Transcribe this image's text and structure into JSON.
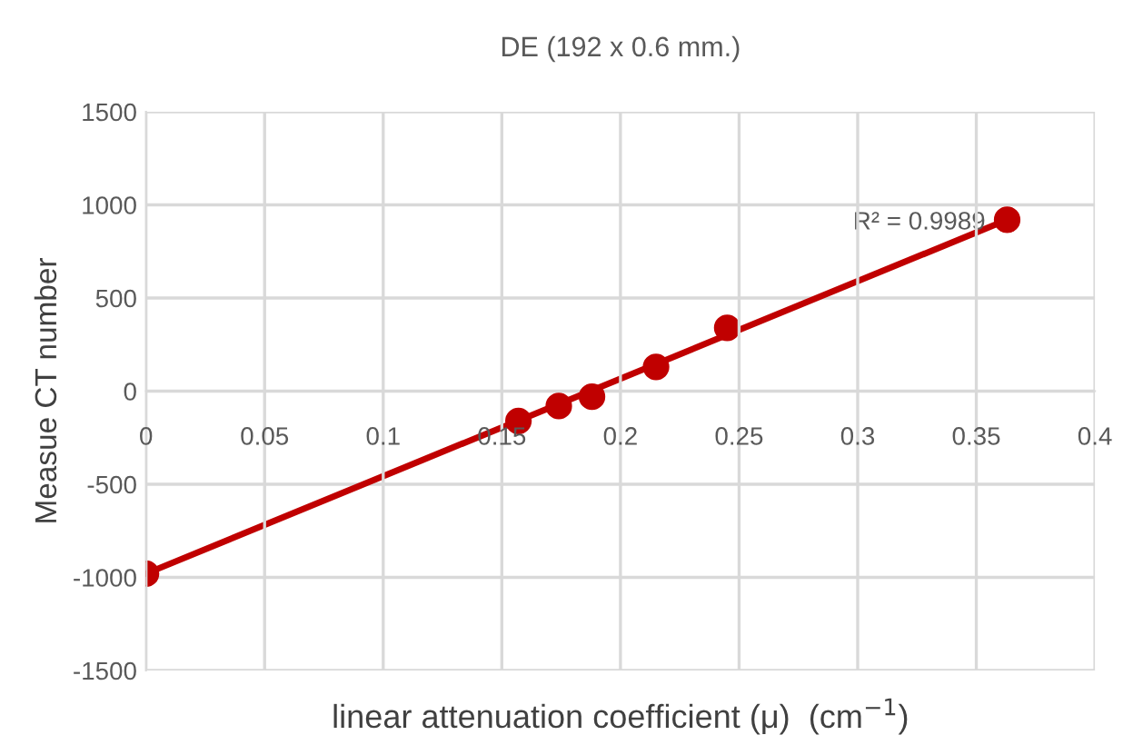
{
  "chart_data": {
    "type": "scatter",
    "title": "DE (192 x 0.6 mm.)",
    "xlabel": "linear attenuation coefficient (μ)  (cm$^{−1}$)",
    "ylabel": "Measue CT number",
    "series": [
      {
        "color": "#c00000",
        "marker": "circle",
        "x": [
          0,
          0.157,
          0.174,
          0.188,
          0.215,
          0.245,
          0.363
        ],
        "values": [
          -980,
          -160,
          -80,
          -30,
          130,
          340,
          920
        ]
      },
      {
        "type": "line",
        "marker": "none",
        "color": "#c00000",
        "x": [
          0,
          0.363
        ],
        "values": [
          -980,
          920
        ]
      }
    ],
    "annotations": [
      "R² = 0.9989"
    ],
    "xlim": [
      0,
      0.4
    ],
    "xticks": [
      0,
      0.05,
      0.1,
      0.15,
      0.2,
      0.25,
      0.3,
      0.35,
      0.4
    ],
    "ylim": [
      -1500,
      1500
    ],
    "yticks": [
      -1500,
      -1000,
      -500,
      0,
      500,
      1000,
      1500
    ],
    "grid": true,
    "legend": false
  }
}
